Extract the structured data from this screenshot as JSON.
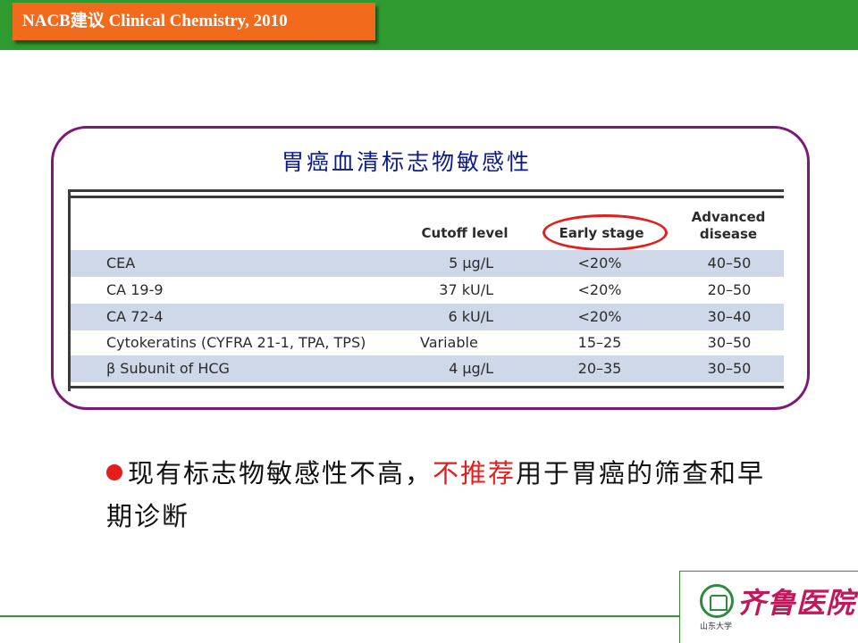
{
  "header": {
    "badge_text": "NACB建议 Clinical Chemistry, 2010"
  },
  "panel": {
    "title": "胃癌血清标志物敏感性"
  },
  "table": {
    "headers": {
      "cutoff": "Cutoff level",
      "early": "Early stage",
      "advanced_line1": "Advanced",
      "advanced_line2": "disease"
    },
    "rows": [
      {
        "marker": "CEA",
        "cutoff": "5 μg/L",
        "early": "<20%",
        "advanced": "40–50"
      },
      {
        "marker": "CA 19-9",
        "cutoff": "37 kU/L",
        "early": "<20%",
        "advanced": "20–50"
      },
      {
        "marker": "CA 72-4",
        "cutoff": "6 kU/L",
        "early": "<20%",
        "advanced": "30–40"
      },
      {
        "marker": "Cytokeratins (CYFRA 21-1, TPA, TPS)",
        "cutoff": "Variable",
        "early": "15–25",
        "advanced": "30–50"
      },
      {
        "marker": "β Subunit of HCG",
        "cutoff": "4 μg/L",
        "early": "20–35",
        "advanced": "30–50"
      }
    ]
  },
  "bullet": {
    "part1": "现有标志物敏感性不高，",
    "highlight": "不推荐",
    "part2": "用于胃癌的筛查和早期诊断"
  },
  "footer": {
    "logo_text": "齐鲁医院",
    "logo_sub": "山东大学"
  },
  "colors": {
    "header_green": "#2f9a2f",
    "badge_orange": "#f26b1d",
    "frame_purple": "#7a1a75",
    "row_shade": "#cfd8e8",
    "accent_red": "#e41d1d"
  }
}
